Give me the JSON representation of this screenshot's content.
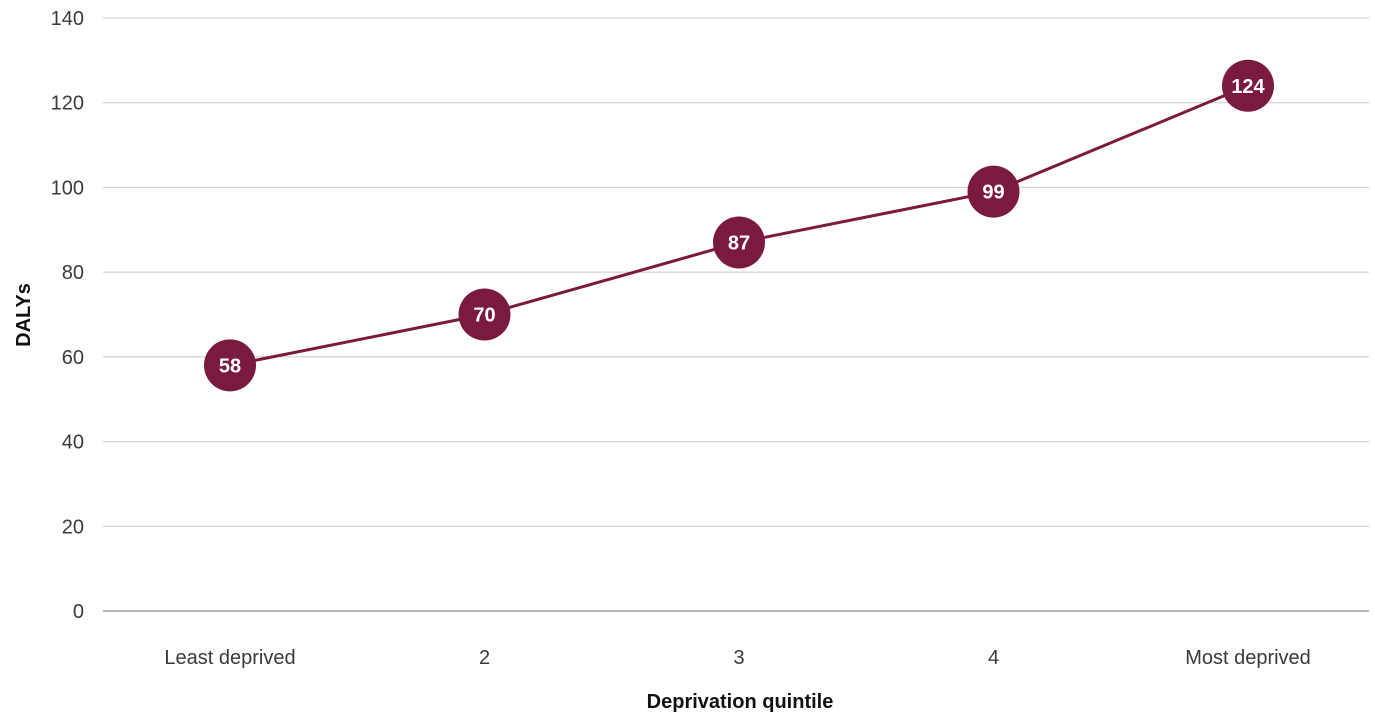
{
  "chart_data": {
    "type": "line",
    "categories": [
      "Least deprived",
      "2",
      "3",
      "4",
      "Most deprived"
    ],
    "series": [
      {
        "values": [
          58,
          70,
          87,
          99,
          124
        ],
        "color": "#7b1a3f"
      }
    ],
    "xlabel": "Deprivation quintile",
    "ylabel": "DALYs",
    "ylim": [
      0,
      140
    ],
    "yticks": [
      "0",
      "20",
      "40",
      "60",
      "80",
      "100",
      "120",
      "140"
    ],
    "data_labels": [
      "58",
      "70",
      "87",
      "99",
      "124"
    ],
    "grid": "horizontal",
    "legend": "none"
  }
}
